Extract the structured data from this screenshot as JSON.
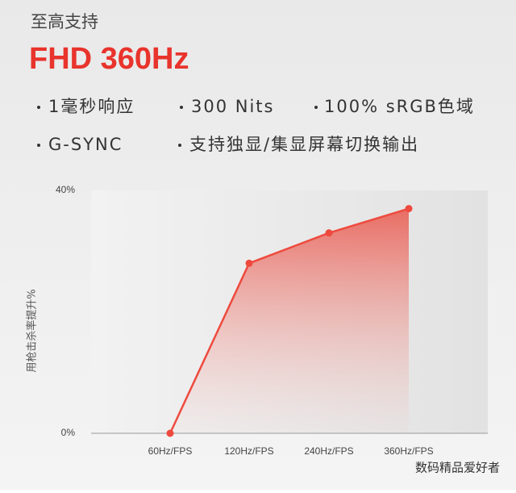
{
  "header": {
    "subtitle": "至高支持",
    "title": "FHD 360Hz"
  },
  "features": [
    "1毫秒响应",
    "300 Nits",
    "100% sRGB色域",
    "G-SYNC",
    "支持独显/集显屏幕切换输出"
  ],
  "chart_data": {
    "type": "line",
    "ylabel": "用枪击杀率提升%",
    "categories": [
      "60Hz/FPS",
      "120Hz/FPS",
      "240Hz/FPS",
      "360Hz/FPS"
    ],
    "values": [
      0,
      28,
      33,
      37
    ],
    "color": "#ee4a3e",
    "ylim": [
      0,
      40
    ],
    "yticks": [
      {
        "value": 0,
        "label": "0%"
      },
      {
        "value": 40,
        "label": "40%"
      }
    ]
  },
  "watermark": "数码精品爱好者"
}
